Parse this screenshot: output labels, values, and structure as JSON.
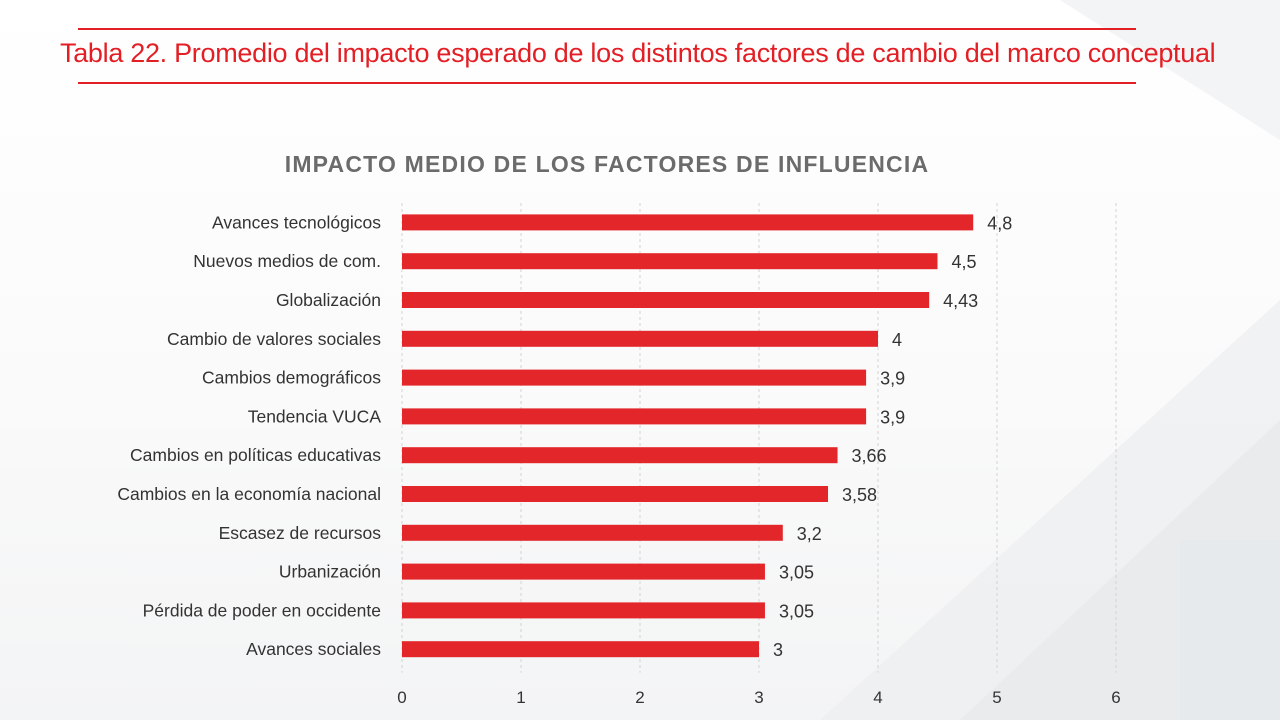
{
  "page": {
    "title": "Tabla 22. Promedio del impacto esperado de los distintos factores de cambio del marco conceptual"
  },
  "colors": {
    "accent": "#e31e24",
    "bar": "#e3262a",
    "chart_title": "#6b6b6b",
    "text": "#333333",
    "grid": "#d3d3d3"
  },
  "chart_data": {
    "type": "bar",
    "orientation": "horizontal",
    "title": "IMPACTO MEDIO DE LOS FACTORES DE INFLUENCIA",
    "categories": [
      "Avances tecnológicos",
      "Nuevos medios de com.",
      "Globalización",
      "Cambio de valores sociales",
      "Cambios demográficos",
      "Tendencia VUCA",
      "Cambios en políticas educativas",
      "Cambios en la economía nacional",
      "Escasez de recursos",
      "Urbanización",
      "Pérdida de poder en occidente",
      "Avances sociales"
    ],
    "values": [
      4.8,
      4.5,
      4.43,
      4,
      3.9,
      3.9,
      3.66,
      3.58,
      3.2,
      3.05,
      3.05,
      3
    ],
    "value_labels": [
      "4,8",
      "4,5",
      "4,43",
      "4",
      "3,9",
      "3,9",
      "3,66",
      "3,58",
      "3,2",
      "3,05",
      "3,05",
      "3"
    ],
    "xlim": [
      0,
      6
    ],
    "xticks": [
      "0",
      "1",
      "2",
      "3",
      "4",
      "5",
      "6"
    ],
    "grid": "vertical-dashed",
    "legend": "none"
  }
}
